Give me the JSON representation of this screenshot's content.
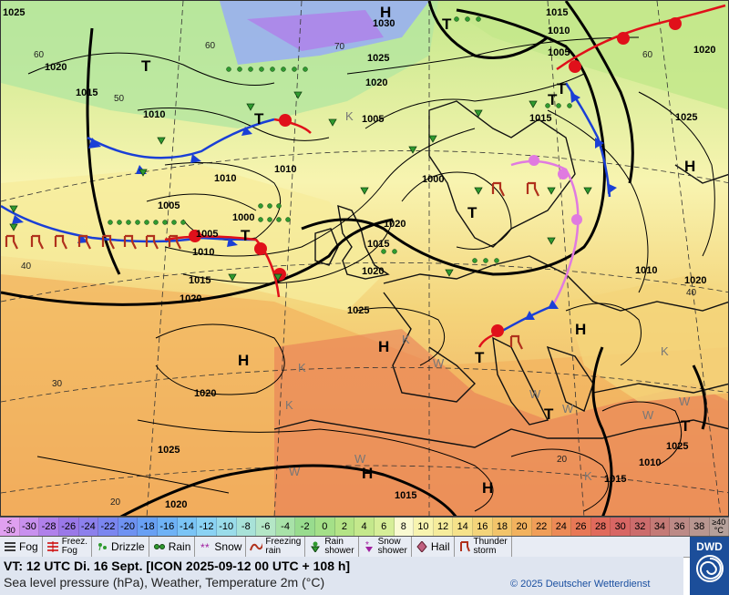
{
  "map": {
    "isobar_labels": [
      "1025",
      "1030",
      "1015",
      "1010",
      "1005",
      "1020",
      "1025",
      "1020",
      "1015",
      "1010",
      "1005",
      "1000",
      "1010",
      "1015",
      "1020",
      "1025",
      "1010",
      "1005",
      "1000",
      "1005",
      "1010",
      "1015",
      "1020",
      "1025",
      "1020",
      "1015",
      "1010",
      "1020",
      "1025",
      "1020",
      "1025",
      "1015",
      "1015",
      "1020",
      "1020",
      "1010"
    ],
    "pressure_centres": [
      "H",
      "T",
      "T",
      "T",
      "T",
      "T",
      "T",
      "H",
      "H",
      "H",
      "H",
      "H",
      "H",
      "T",
      "T",
      "T",
      "T"
    ],
    "latitude_labels": [
      "60",
      "70",
      "60",
      "50",
      "60",
      "40",
      "40",
      "30",
      "20",
      "20"
    ],
    "weather_letters": [
      "K",
      "K",
      "K",
      "K",
      "K",
      "W",
      "W",
      "W",
      "W",
      "W",
      "W",
      "W",
      "K"
    ],
    "colors": {
      "front_cold": "#1a3fd6",
      "front_warm": "#e0101a",
      "front_occluded": "#e07ae0",
      "isobar": "#000000",
      "rain": "#2f9a2f",
      "thunderstorm": "#b0311c"
    }
  },
  "scale": {
    "first_label_top": "<",
    "first_label_bottom": "-30",
    "labels": [
      "-30",
      "-28",
      "-26",
      "-24",
      "-22",
      "-20",
      "-18",
      "-16",
      "-14",
      "-12",
      "-10",
      "-8",
      "-6",
      "-4",
      "-2",
      "0",
      "2",
      "4",
      "6",
      "8",
      "10",
      "12",
      "14",
      "16",
      "18",
      "20",
      "22",
      "24",
      "26",
      "28",
      "30",
      "32",
      "34",
      "36",
      "38"
    ],
    "last_label_top": "≥40",
    "last_label_bottom": "°C",
    "colors": [
      "#e0a0f0",
      "#c890ee",
      "#b080ea",
      "#9a78e8",
      "#8c80ec",
      "#7a86f0",
      "#6e92f2",
      "#68a0f4",
      "#6eb2f6",
      "#7ac4f6",
      "#8ad2f4",
      "#9adcea",
      "#a8e2d8",
      "#b4e6c6",
      "#a8e2a8",
      "#98dc8e",
      "#a4e088",
      "#b4e486",
      "#c4e88c",
      "#d6ee98",
      "#fafad2",
      "#f8f4b0",
      "#f6ec9c",
      "#f6e28a",
      "#f4d47a",
      "#f2c46a",
      "#f2b25e",
      "#f09e58",
      "#ec8a56",
      "#e87856",
      "#e06a5c",
      "#d86664",
      "#cc6c6c",
      "#c47a76",
      "#bc8a86",
      "#b89690",
      "#b4a09a"
    ]
  },
  "legend": {
    "items": [
      {
        "icon": "fog-icon",
        "label": "Fog"
      },
      {
        "icon": "freezing-fog-icon",
        "label": "Freez.\nFog"
      },
      {
        "icon": "drizzle-icon",
        "label": "Drizzle"
      },
      {
        "icon": "rain-icon",
        "label": "Rain"
      },
      {
        "icon": "snow-icon",
        "label": "Snow"
      },
      {
        "icon": "freezing-rain-icon",
        "label": "Freezing\nrain"
      },
      {
        "icon": "rain-shower-icon",
        "label": "Rain\nshower"
      },
      {
        "icon": "snow-shower-icon",
        "label": "Snow\nshower"
      },
      {
        "icon": "hail-icon",
        "label": "Hail"
      },
      {
        "icon": "thunderstorm-icon",
        "label": "Thunder\nstorm"
      }
    ]
  },
  "info": {
    "valid_time": "VT: 12 UTC Di.  16 Sept. [ICON 2025-09-12  00 UTC + 108 h]",
    "description": "Sea level pressure (hPa), Weather, Temperature 2m (°C)",
    "copyright": "© 2025 Deutscher Wetterdienst"
  },
  "logo": {
    "text": "DWD"
  }
}
